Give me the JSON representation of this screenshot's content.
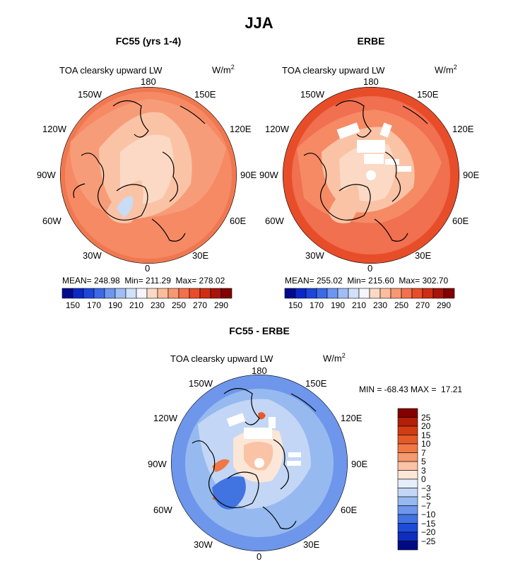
{
  "main_title": "JJA",
  "panels": [
    {
      "title": "FC55 (yrs 1-4)",
      "subtitle": "TOA clearsky upward LW",
      "units": "W/m",
      "units_exp": "2",
      "lon_labels": {
        "n": "180",
        "nw": "150W",
        "ne": "150E",
        "wnw": "120W",
        "ene": "120E",
        "w": "90W",
        "e": "90E",
        "wsw": "60W",
        "ese": "60E",
        "sw": "30W",
        "se": "30E",
        "s": "0"
      },
      "stats": "MEAN= 248.98  Min= 211.29  Max= 278.02"
    },
    {
      "title": "ERBE",
      "subtitle": "TOA clearsky upward LW",
      "units": "W/m",
      "units_exp": "2",
      "lon_labels": {
        "n": "180",
        "nw": "150W",
        "ne": "150E",
        "wnw": "120W",
        "ene": "120E",
        "w": "90W",
        "e": "90E",
        "wsw": "60W",
        "ese": "60E",
        "sw": "30W",
        "se": "30E",
        "s": "0"
      },
      "stats": "MEAN= 255.02  Min= 215.60  Max= 302.70"
    },
    {
      "title": "FC55 - ERBE",
      "subtitle": "TOA clearsky upward LW",
      "units": "W/m",
      "units_exp": "2",
      "lon_labels": {
        "n": "180",
        "nw": "150W",
        "ne": "150E",
        "wnw": "120W",
        "ene": "120E",
        "w": "90W",
        "e": "90E",
        "wsw": "60W",
        "ese": "60E",
        "sw": "30W",
        "se": "30E",
        "s": "0"
      },
      "stats": "MIN = -68.43 MAX =  17.21"
    }
  ],
  "colorbar_abs": {
    "labels": [
      "150",
      "170",
      "190",
      "210",
      "230",
      "250",
      "270",
      "290"
    ],
    "colors": [
      "#000a8c",
      "#0a28c8",
      "#1e46dc",
      "#3c69e6",
      "#6e96f0",
      "#a0beF5",
      "#d2e1fa",
      "#f5f5fa",
      "#fbd9c4",
      "#fbbd9c",
      "#f89873",
      "#f4704c",
      "#e84d2a",
      "#d02e14",
      "#a8140a",
      "#820000"
    ]
  },
  "colorbar_diff": {
    "labels": [
      "25",
      "20",
      "15",
      "10",
      "7",
      "5",
      "3",
      "0",
      "−3",
      "−5",
      "−7",
      "−10",
      "−15",
      "−20",
      "−25"
    ],
    "colors": [
      "#820000",
      "#b41e0a",
      "#d23c14",
      "#e65a28",
      "#f07846",
      "#f59a6e",
      "#fac3a5",
      "#fbe6d7",
      "#e6eefa",
      "#c3d6f5",
      "#96b9f0",
      "#6e96eb",
      "#4173e1",
      "#1e4bd7",
      "#0f2dbe",
      "#000a82"
    ]
  }
}
